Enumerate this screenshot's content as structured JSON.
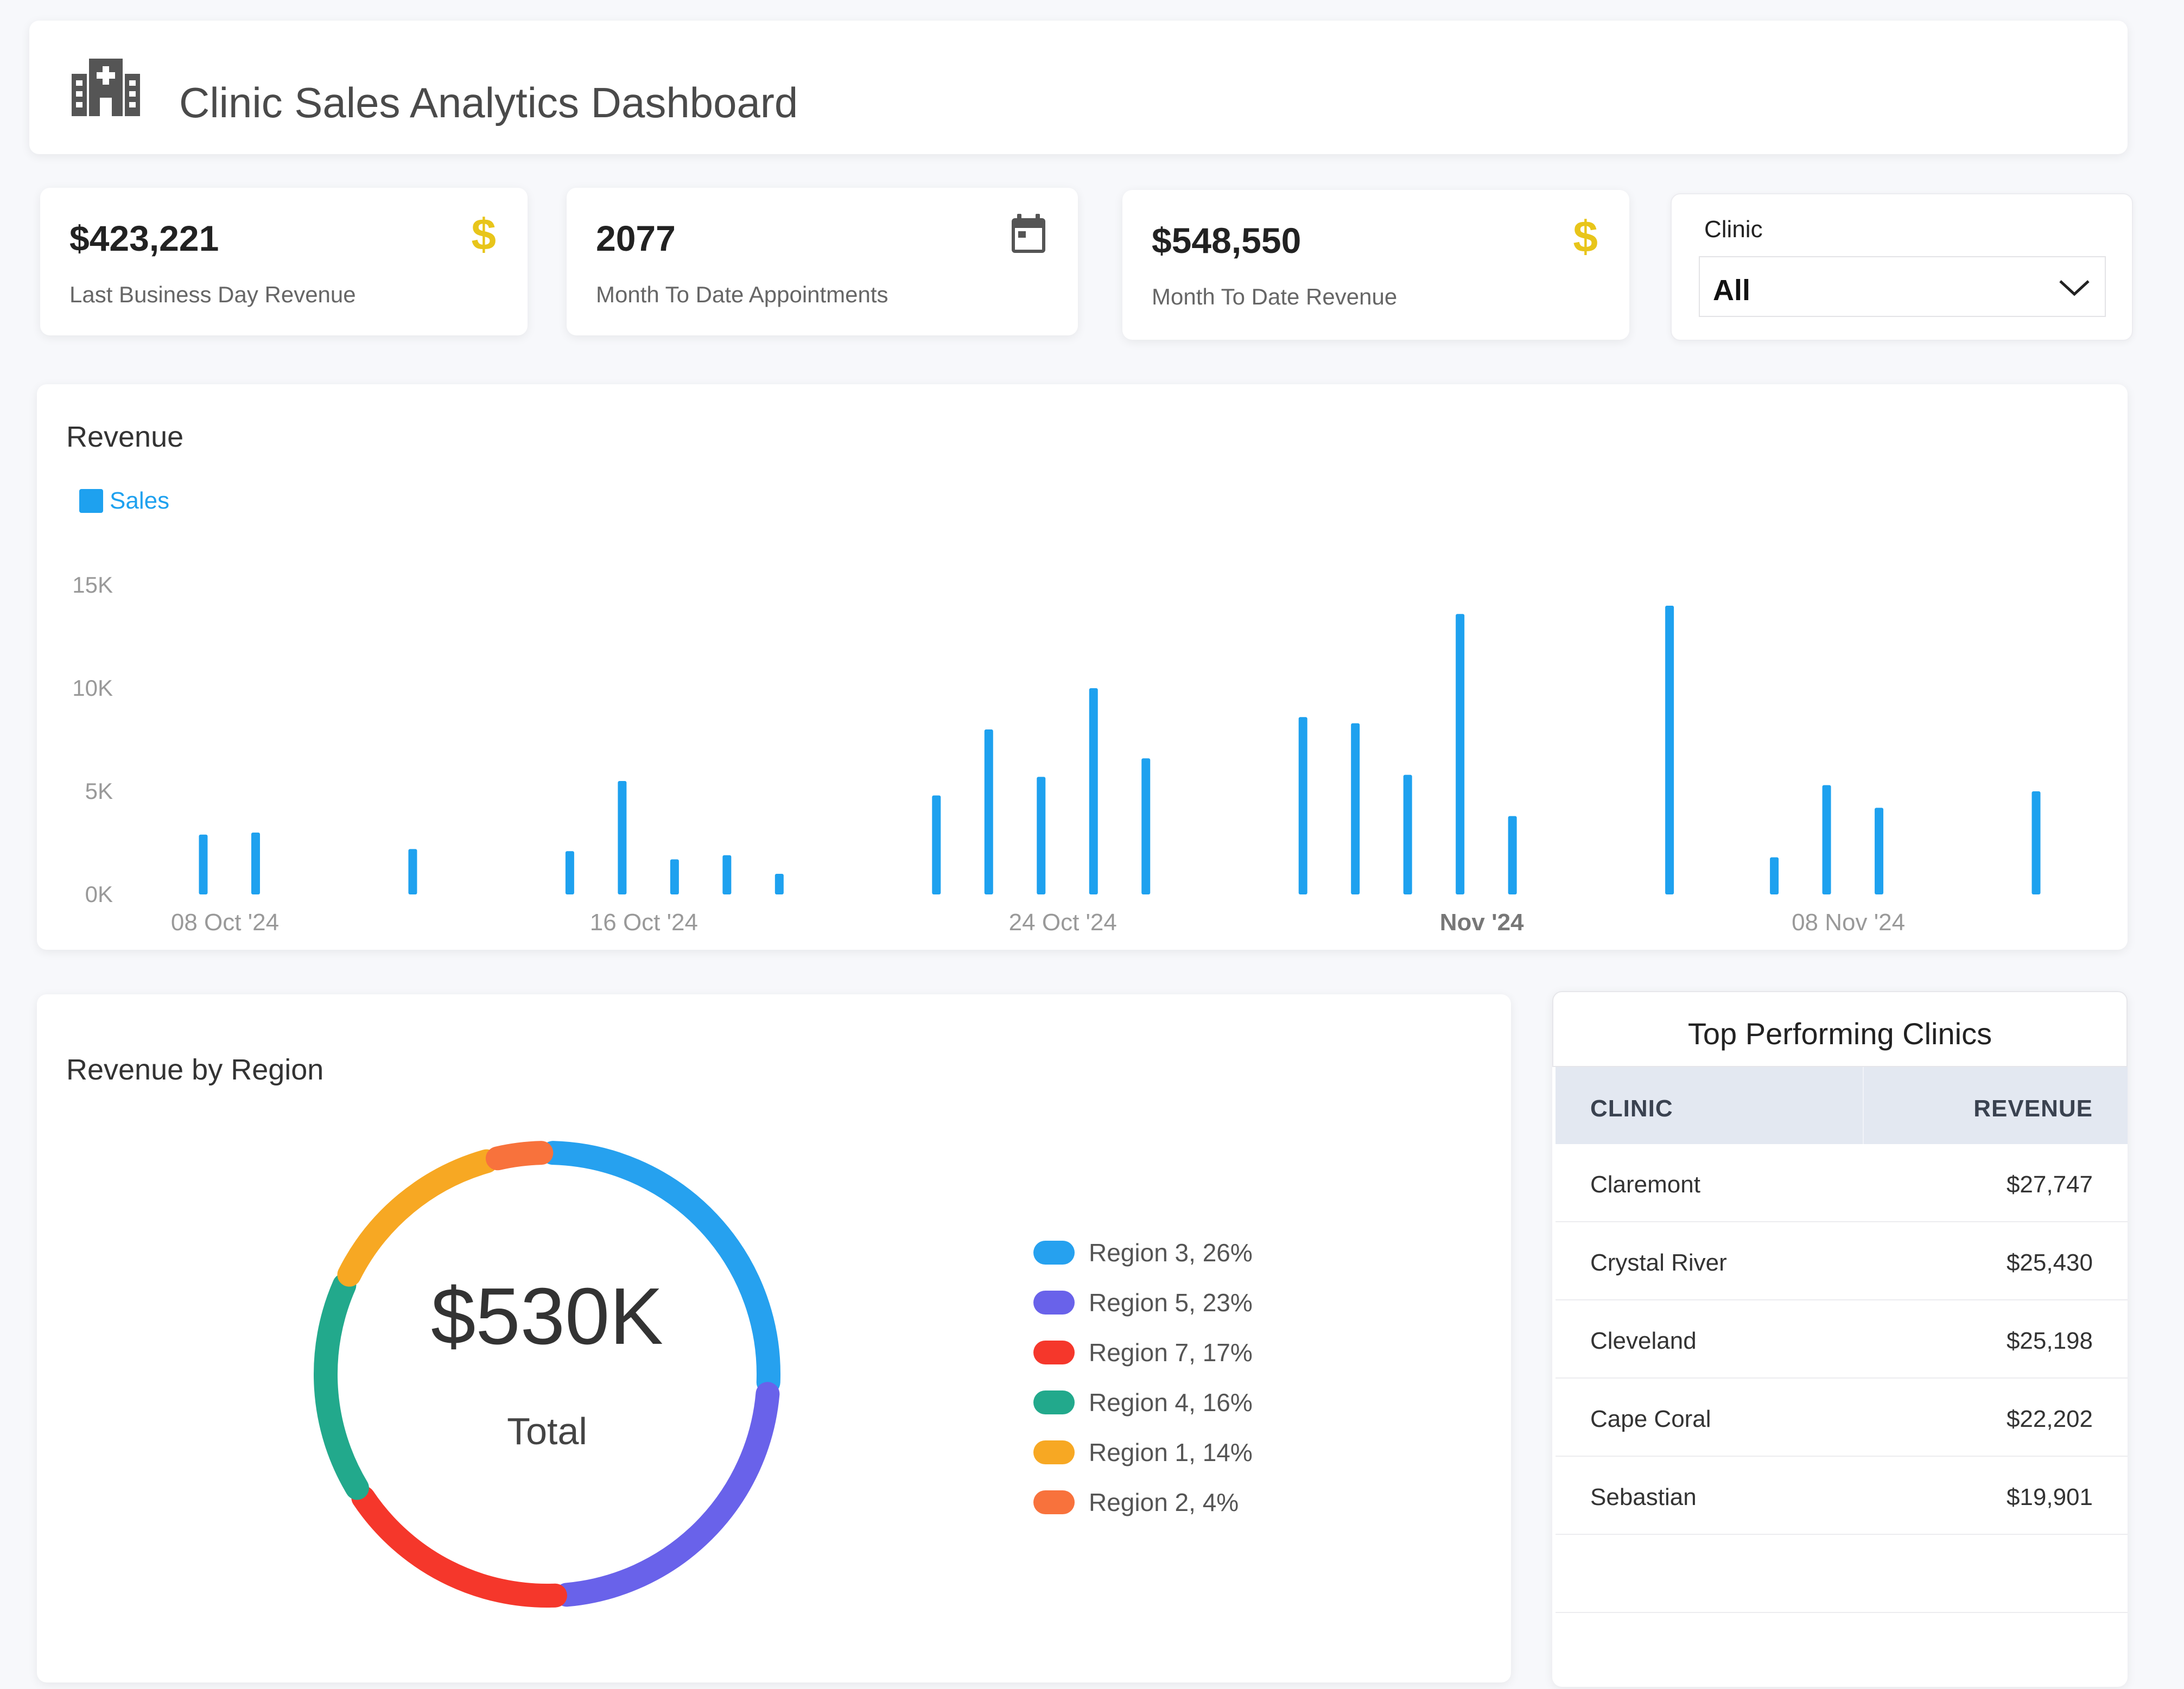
{
  "header": {
    "title": "Clinic Sales Analytics Dashboard",
    "icon": "hospital-building-icon"
  },
  "kpis": [
    {
      "value": "$423,221",
      "label": "Last Business Day Revenue",
      "icon": "dollar-icon"
    },
    {
      "value": "2077",
      "label": "Month To Date Appointments",
      "icon": "calendar-icon"
    },
    {
      "value": "$548,550",
      "label": "Month To Date Revenue",
      "icon": "dollar-icon"
    }
  ],
  "filter": {
    "label": "Clinic",
    "selected": "All"
  },
  "revenue_chart": {
    "title": "Revenue",
    "legend": "Sales"
  },
  "region_chart": {
    "title": "Revenue by Region",
    "center_value": "$530K",
    "center_label": "Total"
  },
  "top_clinics": {
    "title": "Top Performing Clinics",
    "columns": [
      "CLINIC",
      "REVENUE"
    ],
    "rows": [
      {
        "clinic": "Claremont",
        "revenue": "$27,747"
      },
      {
        "clinic": "Crystal River",
        "revenue": "$25,430"
      },
      {
        "clinic": "Cleveland",
        "revenue": "$25,198"
      },
      {
        "clinic": "Cape Coral",
        "revenue": "$22,202"
      },
      {
        "clinic": "Sebastian",
        "revenue": "$19,901"
      }
    ]
  },
  "colors": {
    "sales": "#1ea1ef",
    "accent_gold": "#e8c51a"
  },
  "chart_data": [
    {
      "type": "bar",
      "title": "Revenue",
      "series": [
        {
          "name": "Sales",
          "x": [
            "2024-10-08",
            "2024-10-09",
            "2024-10-12",
            "2024-10-15",
            "2024-10-16",
            "2024-10-17",
            "2024-10-18",
            "2024-10-19",
            "2024-10-22",
            "2024-10-23",
            "2024-10-24",
            "2024-10-25",
            "2024-10-26",
            "2024-10-29",
            "2024-10-30",
            "2024-10-31",
            "2024-11-01",
            "2024-11-02",
            "2024-11-05",
            "2024-11-07",
            "2024-11-08",
            "2024-11-09",
            "2024-11-12"
          ],
          "values": [
            2900,
            3000,
            2200,
            2100,
            5500,
            1700,
            1900,
            1000,
            4800,
            8000,
            5700,
            10000,
            6600,
            8600,
            8300,
            5800,
            13600,
            3800,
            14000,
            1800,
            5300,
            4200,
            5000
          ]
        }
      ],
      "x_ticks": [
        "08 Oct '24",
        "16 Oct '24",
        "24 Oct '24",
        "Nov '24",
        "08 Nov '24"
      ],
      "y_ticks": [
        "0K",
        "5K",
        "10K",
        "15K"
      ],
      "ylim": [
        0,
        15000
      ],
      "legend": "top-left",
      "grid": false
    },
    {
      "type": "pie",
      "title": "Revenue by Region",
      "donut": true,
      "total_label": "$530K",
      "slices": [
        {
          "name": "Region 3",
          "value": 26,
          "label": "Region 3, 26%",
          "color": "#26a1ef"
        },
        {
          "name": "Region 5",
          "value": 23,
          "label": "Region 5, 23%",
          "color": "#6962ea"
        },
        {
          "name": "Region 7",
          "value": 17,
          "label": "Region 7, 17%",
          "color": "#f5372b"
        },
        {
          "name": "Region 4",
          "value": 16,
          "label": "Region 4, 16%",
          "color": "#22a98c"
        },
        {
          "name": "Region 1",
          "value": 14,
          "label": "Region 1, 14%",
          "color": "#f7a823"
        },
        {
          "name": "Region 2",
          "value": 4,
          "label": "Region 2, 4%",
          "color": "#f8723c"
        }
      ],
      "legend": "right"
    }
  ]
}
